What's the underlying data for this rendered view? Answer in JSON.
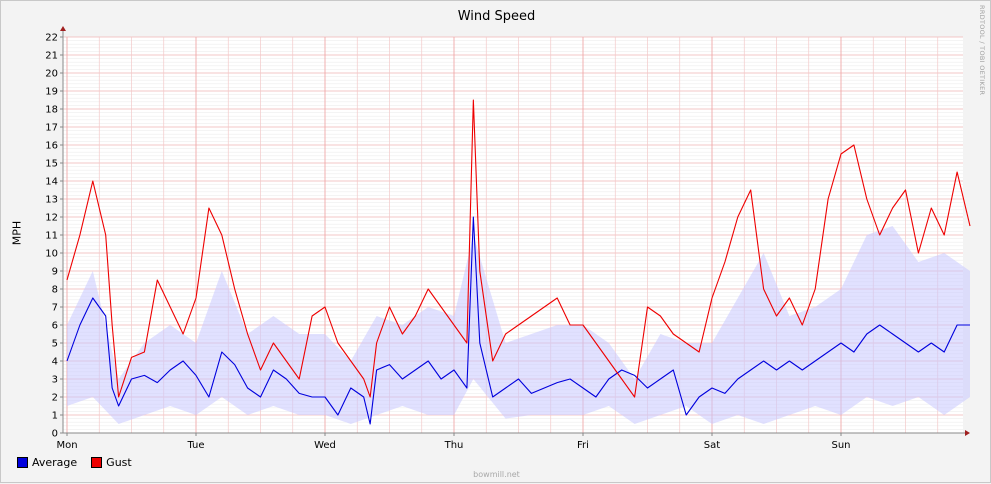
{
  "chart_data": {
    "type": "line",
    "title": "Wind Speed",
    "ylabel": "MPH",
    "xlabel": "",
    "ylim": [
      0,
      22
    ],
    "yticks": [
      0,
      1,
      2,
      3,
      4,
      5,
      6,
      7,
      8,
      9,
      10,
      11,
      12,
      13,
      14,
      15,
      16,
      17,
      18,
      19,
      20,
      21,
      22
    ],
    "xlim_days": [
      0,
      7
    ],
    "x_tick_labels": [
      "Mon",
      "Tue",
      "Wed",
      "Thu",
      "Fri",
      "Sat",
      "Sun"
    ],
    "grid": true,
    "legend_position": "bottom-left",
    "series": [
      {
        "name": "Average",
        "color": "#0000dd",
        "x_days": [
          0.0,
          0.1,
          0.2,
          0.3,
          0.35,
          0.4,
          0.5,
          0.6,
          0.7,
          0.8,
          0.9,
          1.0,
          1.1,
          1.2,
          1.3,
          1.4,
          1.5,
          1.6,
          1.7,
          1.8,
          1.9,
          2.0,
          2.1,
          2.2,
          2.3,
          2.35,
          2.4,
          2.5,
          2.6,
          2.7,
          2.8,
          2.9,
          3.0,
          3.1,
          3.15,
          3.2,
          3.3,
          3.4,
          3.5,
          3.6,
          3.7,
          3.8,
          3.9,
          4.0,
          4.1,
          4.2,
          4.3,
          4.4,
          4.5,
          4.6,
          4.7,
          4.8,
          4.9,
          5.0,
          5.1,
          5.2,
          5.3,
          5.4,
          5.5,
          5.6,
          5.7,
          5.8,
          5.9,
          6.0,
          6.1,
          6.2,
          6.3,
          6.4,
          6.5,
          6.6,
          6.7,
          6.8,
          6.9,
          7.0
        ],
        "values": [
          4.0,
          6.0,
          7.5,
          6.5,
          2.5,
          1.5,
          3.0,
          3.2,
          2.8,
          3.5,
          4.0,
          3.2,
          2.0,
          4.5,
          3.8,
          2.5,
          2.0,
          3.5,
          3.0,
          2.2,
          2.0,
          2.0,
          1.0,
          2.5,
          2.0,
          0.5,
          3.5,
          3.8,
          3.0,
          3.5,
          4.0,
          3.0,
          3.5,
          2.5,
          12.0,
          5.0,
          2.0,
          2.5,
          3.0,
          2.2,
          2.5,
          2.8,
          3.0,
          2.5,
          2.0,
          3.0,
          3.5,
          3.2,
          2.5,
          3.0,
          3.5,
          1.0,
          2.0,
          2.5,
          2.2,
          3.0,
          3.5,
          4.0,
          3.5,
          4.0,
          3.5,
          4.0,
          4.5,
          5.0,
          4.5,
          5.5,
          6.0,
          5.5,
          5.0,
          4.5,
          5.0,
          4.5,
          6.0,
          6.0
        ]
      },
      {
        "name": "Gust",
        "color": "#ee0000",
        "x_days": [
          0.0,
          0.1,
          0.2,
          0.3,
          0.35,
          0.4,
          0.5,
          0.6,
          0.7,
          0.8,
          0.9,
          1.0,
          1.1,
          1.2,
          1.3,
          1.4,
          1.5,
          1.6,
          1.7,
          1.8,
          1.9,
          2.0,
          2.1,
          2.2,
          2.3,
          2.35,
          2.4,
          2.5,
          2.6,
          2.7,
          2.8,
          2.9,
          3.0,
          3.1,
          3.15,
          3.2,
          3.3,
          3.4,
          3.5,
          3.6,
          3.7,
          3.8,
          3.9,
          4.0,
          4.1,
          4.2,
          4.3,
          4.4,
          4.5,
          4.6,
          4.7,
          4.8,
          4.9,
          5.0,
          5.1,
          5.2,
          5.3,
          5.4,
          5.5,
          5.6,
          5.7,
          5.8,
          5.9,
          6.0,
          6.1,
          6.2,
          6.3,
          6.4,
          6.5,
          6.6,
          6.7,
          6.8,
          6.9,
          7.0
        ],
        "values": [
          8.5,
          11.0,
          14.0,
          11.0,
          6.0,
          2.0,
          4.2,
          4.5,
          8.5,
          7.0,
          5.5,
          7.5,
          12.5,
          11.0,
          8.0,
          5.5,
          3.5,
          5.0,
          4.0,
          3.0,
          6.5,
          7.0,
          5.0,
          4.0,
          3.0,
          2.0,
          5.0,
          7.0,
          5.5,
          6.5,
          8.0,
          7.0,
          6.0,
          5.0,
          18.5,
          9.0,
          4.0,
          5.5,
          6.0,
          6.5,
          7.0,
          7.5,
          6.0,
          6.0,
          5.0,
          4.0,
          3.0,
          2.0,
          7.0,
          6.5,
          5.5,
          5.0,
          4.5,
          7.5,
          9.5,
          12.0,
          13.5,
          8.0,
          6.5,
          7.5,
          6.0,
          8.0,
          13.0,
          15.5,
          16.0,
          13.0,
          11.0,
          12.5,
          13.5,
          10.0,
          12.5,
          11.0,
          14.5,
          11.5
        ]
      }
    ],
    "range_band": {
      "name": "",
      "color": "#c8c8ff",
      "x_days": [
        0.0,
        0.2,
        0.4,
        0.6,
        0.8,
        1.0,
        1.2,
        1.4,
        1.6,
        1.8,
        2.0,
        2.2,
        2.4,
        2.6,
        2.8,
        3.0,
        3.15,
        3.4,
        3.6,
        3.8,
        4.0,
        4.2,
        4.4,
        4.6,
        4.8,
        5.0,
        5.2,
        5.4,
        5.6,
        5.8,
        6.0,
        6.2,
        6.4,
        6.6,
        6.8,
        7.0
      ],
      "low": [
        1.5,
        2.0,
        0.5,
        1.0,
        1.5,
        1.0,
        2.0,
        1.0,
        1.5,
        1.0,
        1.0,
        0.5,
        1.0,
        1.5,
        1.0,
        1.0,
        3.0,
        0.8,
        1.0,
        1.0,
        1.0,
        1.5,
        0.5,
        1.0,
        1.5,
        0.5,
        1.0,
        0.5,
        1.0,
        1.5,
        1.0,
        2.0,
        1.5,
        2.0,
        1.0,
        2.0
      ],
      "high": [
        6.0,
        9.0,
        3.0,
        5.0,
        6.0,
        5.0,
        9.0,
        5.5,
        6.5,
        5.5,
        5.5,
        4.0,
        6.5,
        6.0,
        7.0,
        6.5,
        11.0,
        5.0,
        5.5,
        6.0,
        6.0,
        5.0,
        3.0,
        5.5,
        5.0,
        5.0,
        7.5,
        10.0,
        6.5,
        7.0,
        8.0,
        11.0,
        11.5,
        9.5,
        10.0,
        9.0
      ]
    },
    "legend": [
      {
        "label": "Average",
        "color": "#0000dd"
      },
      {
        "label": "Gust",
        "color": "#ee0000"
      }
    ]
  },
  "watermark": "RRDTOOL / TOBI OETIKER",
  "footer": "bowmill.net"
}
